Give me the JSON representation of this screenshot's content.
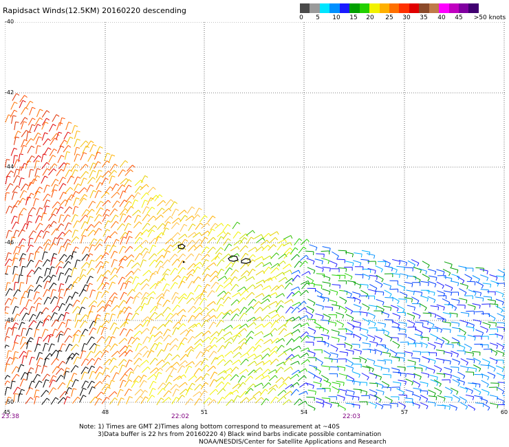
{
  "title": "Rapidsact Winds(12.5KM) 20160220 descending",
  "legend": {
    "labels": [
      "0",
      "5",
      "10",
      "15",
      "20",
      "25",
      "30",
      "35",
      "40",
      "45",
      ">50 knots"
    ],
    "colors": [
      "#4a4a4a",
      "#9a9a9a",
      "#00e5ff",
      "#0090ff",
      "#1a1aff",
      "#00a000",
      "#22d000",
      "#f2f200",
      "#ffb000",
      "#ff7000",
      "#ff3000",
      "#e00000",
      "#8b4a2a",
      "#c07a4a",
      "#ff00ff",
      "#c000c0",
      "#8000a0",
      "#400070"
    ]
  },
  "axes": {
    "lat_labels": [
      "-40",
      "-42",
      "-44",
      "-46",
      "-48",
      "-50"
    ],
    "lon_labels": [
      "45",
      "48",
      "51",
      "54",
      "57",
      "60"
    ]
  },
  "times": [
    "23:38",
    "22:02",
    "22:03"
  ],
  "notes": [
    "Note: 1) Times are GMT 2)Times along bottom correspond to measurement at ~40S",
    "3)Data buffer is 22 hrs from 20160220 4) Black wind barbs indicate possible contamination",
    "NOAA/NESDIS/Center for Satellite Applications and Research"
  ]
}
